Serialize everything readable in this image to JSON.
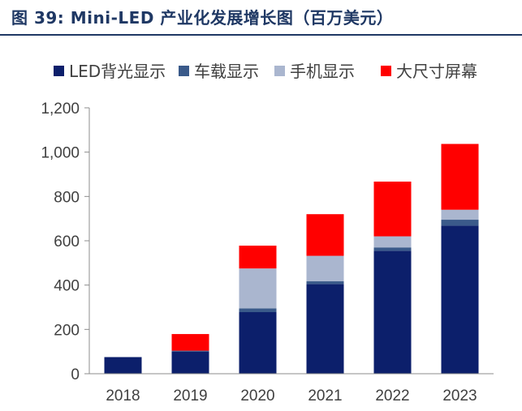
{
  "figure": {
    "label": "图 39:",
    "title": "Mini-LED 产业化发展增长图（百万美元）"
  },
  "chart_data": {
    "type": "bar",
    "stacked": true,
    "categories": [
      "2018",
      "2019",
      "2020",
      "2021",
      "2022",
      "2023"
    ],
    "series": [
      {
        "name": "LED背光显示",
        "color": "#0c1f6b",
        "values": [
          75,
          100,
          278,
          405,
          555,
          668
        ]
      },
      {
        "name": "车载显示",
        "color": "#3a5a8a",
        "values": [
          0,
          4,
          17,
          12,
          15,
          27
        ]
      },
      {
        "name": "手机显示",
        "color": "#aab6cf",
        "values": [
          0,
          0,
          180,
          115,
          50,
          45
        ]
      },
      {
        "name": "大尺寸屏幕",
        "color": "#ff0000",
        "values": [
          0,
          75,
          103,
          188,
          247,
          297
        ]
      }
    ],
    "y_ticks": [
      "0",
      "200",
      "400",
      "600",
      "800",
      "1,000",
      "1,200"
    ],
    "ylim": [
      0,
      1200
    ],
    "grid": false,
    "legend": "top"
  }
}
